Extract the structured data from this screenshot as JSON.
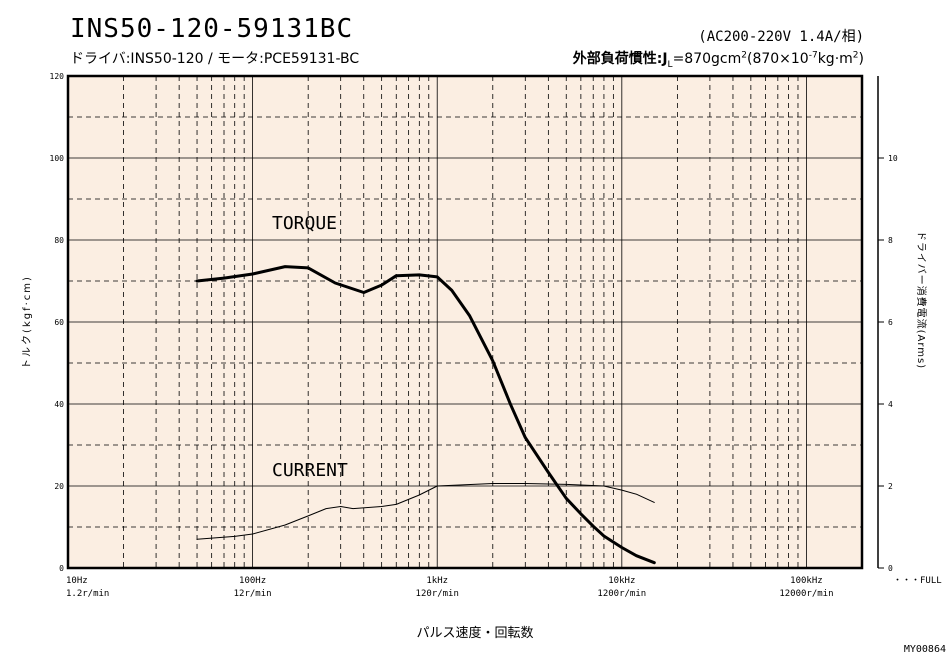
{
  "header": {
    "title": "INS50-120-59131BC",
    "subtitle": "ドライバ:INS50-120 / モータ:PCE59131-BC",
    "supply": "(AC200-220V  1.4A/相)",
    "inertia_prefix": "外部負荷慣性:J",
    "inertia_sub": "L",
    "inertia_value": "=870gcm",
    "inertia_exp1": "2",
    "inertia_paren": "(870×10",
    "inertia_exp2": "-7",
    "inertia_unit": "kg·m",
    "inertia_exp3": "2",
    "inertia_close": ")"
  },
  "footer": {
    "xlabel": "パルス速度・回転数",
    "full_label": "・・・FULL",
    "figure_code": "MY00864"
  },
  "chart_data": {
    "type": "line",
    "xscale": "log",
    "xlim": [
      10,
      200000
    ],
    "x_ticks": [
      10,
      100,
      1000,
      10000,
      100000
    ],
    "x_tick_labels": [
      "10Hz",
      "100Hz",
      "1kHz",
      "10kHz",
      "100kHz"
    ],
    "x_tick_labels2": [
      "1.2r/min",
      "12r/min",
      "120r/min",
      "1200r/min",
      "12000r/min"
    ],
    "ylabel": "トルク(kgf·cm)",
    "ylim": [
      0,
      120
    ],
    "y_ticks": [
      0,
      20,
      40,
      60,
      80,
      100,
      120
    ],
    "y2label": "ドライバー消費電流(Arms)",
    "y2lim": [
      0,
      12
    ],
    "y2_ticks": [
      0,
      2,
      4,
      6,
      8,
      10
    ],
    "grid": true,
    "series": [
      {
        "name": "TORQUE",
        "axis": "left",
        "x": [
          50,
          70,
          100,
          150,
          200,
          280,
          400,
          500,
          600,
          800,
          1000,
          1200,
          1500,
          2000,
          2500,
          3000,
          4000,
          5000,
          6000,
          7000,
          8000,
          10000,
          12000,
          15000
        ],
        "values": [
          70,
          70.7,
          71.7,
          73.5,
          73.2,
          69.5,
          67.2,
          69,
          71.3,
          71.5,
          71,
          67.7,
          61.5,
          50.5,
          39.8,
          31.8,
          23.3,
          17,
          13.2,
          10.2,
          7.8,
          5,
          3,
          1.3
        ]
      },
      {
        "name": "CURRENT",
        "axis": "right",
        "x": [
          50,
          80,
          100,
          150,
          200,
          250,
          300,
          350,
          500,
          600,
          800,
          1000,
          2000,
          3000,
          5000,
          8000,
          10000,
          12000,
          15000
        ],
        "values": [
          0.7,
          0.77,
          0.83,
          1.05,
          1.27,
          1.45,
          1.5,
          1.45,
          1.5,
          1.55,
          1.78,
          2.0,
          2.06,
          2.06,
          2.04,
          2.0,
          1.9,
          1.8,
          1.6
        ]
      }
    ]
  }
}
